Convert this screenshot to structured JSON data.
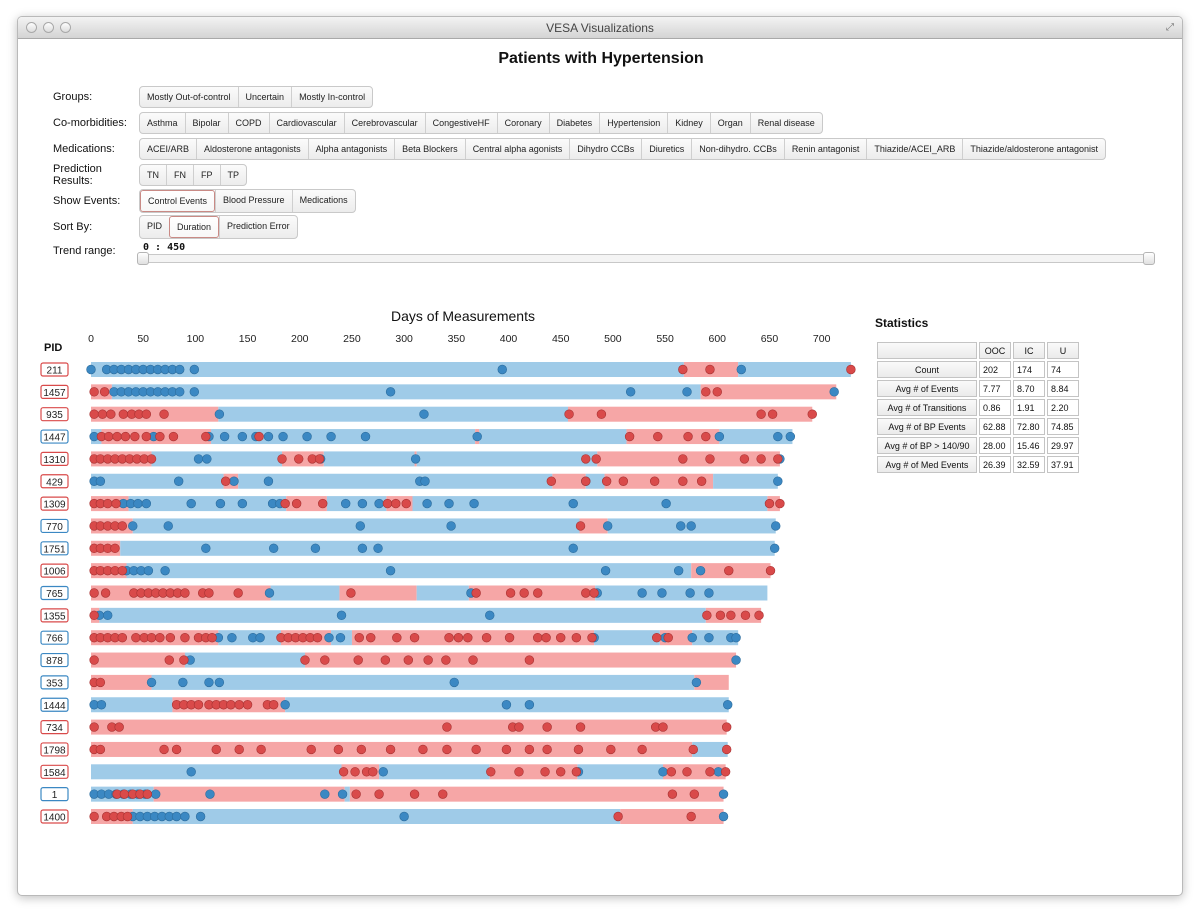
{
  "window": {
    "title": "VESA Visualizations"
  },
  "page": {
    "title": "Patients with Hypertension"
  },
  "controls": [
    {
      "key": "groups",
      "label": "Groups:",
      "buttons": [
        "Mostly Out-of-control",
        "Uncertain",
        "Mostly In-control"
      ],
      "active": -1
    },
    {
      "key": "comorbidities",
      "label": "Co-morbidities:",
      "buttons": [
        "Asthma",
        "Bipolar",
        "COPD",
        "Cardiovascular",
        "Cerebrovascular",
        "CongestiveHF",
        "Coronary",
        "Diabetes",
        "Hypertension",
        "Kidney",
        "Organ",
        "Renal disease"
      ],
      "active": -1
    },
    {
      "key": "medications",
      "label": "Medications:",
      "buttons": [
        "ACEI/ARB",
        "Aldosterone antagonists",
        "Alpha antagonists",
        "Beta Blockers",
        "Central alpha agonists",
        "Dihydro CCBs",
        "Diuretics",
        "Non-dihydro. CCBs",
        "Renin antagonist",
        "Thiazide/ACEI_ARB",
        "Thiazide/aldosterone antagonist"
      ],
      "active": -1
    },
    {
      "key": "prediction",
      "label": "Prediction Results:",
      "buttons": [
        "TN",
        "FN",
        "FP",
        "TP"
      ],
      "active": -1
    },
    {
      "key": "events",
      "label": "Show Events:",
      "buttons": [
        "Control Events",
        "Blood Pressure",
        "Medications"
      ],
      "active": 0
    },
    {
      "key": "sort",
      "label": "Sort By:",
      "buttons": [
        "PID",
        "Duration",
        "Prediction Error"
      ],
      "active": 1
    }
  ],
  "trend": {
    "label": "Trend range:",
    "value": "0 : 450",
    "min": 0,
    "max": 450
  },
  "colors": {
    "in_control": "#9fcbe8",
    "out_of_control": "#f6a6a6",
    "dot_in": "#3b88c3",
    "dot_out": "#d94a4a"
  },
  "chart_data": {
    "type": "timeline",
    "title": "Days of Measurements",
    "row_axis_label": "PID",
    "x_ticks": [
      0,
      50,
      100,
      150,
      200,
      250,
      300,
      350,
      400,
      450,
      500,
      550,
      600,
      650,
      700
    ],
    "xlim": [
      0,
      730
    ],
    "rows": [
      {
        "pid": "211",
        "box": "out",
        "segments": [
          [
            0,
            568,
            "in"
          ],
          [
            568,
            620,
            "out"
          ],
          [
            620,
            728,
            "in"
          ]
        ],
        "dots_in": [
          0,
          15,
          22,
          29,
          36,
          43,
          50,
          57,
          64,
          71,
          78,
          85,
          99,
          394,
          623
        ],
        "dots_out": [
          567,
          593,
          728
        ]
      },
      {
        "pid": "1457",
        "box": "out",
        "segments": [
          [
            0,
            20,
            "out"
          ],
          [
            20,
            584,
            "in"
          ],
          [
            584,
            714,
            "out"
          ]
        ],
        "dots_in": [
          22,
          29,
          36,
          43,
          50,
          57,
          64,
          71,
          78,
          85,
          99,
          287,
          517,
          571,
          712
        ],
        "dots_out": [
          3,
          13,
          589,
          600
        ]
      },
      {
        "pid": "935",
        "box": "out",
        "segments": [
          [
            0,
            122,
            "out"
          ],
          [
            122,
            457,
            "in"
          ],
          [
            457,
            691,
            "out"
          ]
        ],
        "dots_in": [
          123,
          319
        ],
        "dots_out": [
          3,
          11,
          19,
          31,
          39,
          46,
          53,
          70,
          458,
          489,
          642,
          653,
          691
        ]
      },
      {
        "pid": "1447",
        "box": "in",
        "segments": [
          [
            0,
            10,
            "in"
          ],
          [
            10,
            115,
            "out"
          ],
          [
            115,
            368,
            "in"
          ],
          [
            368,
            372,
            "out"
          ],
          [
            372,
            513,
            "in"
          ],
          [
            513,
            602,
            "out"
          ],
          [
            602,
            672,
            "in"
          ]
        ],
        "dots_in": [
          3,
          60,
          113,
          128,
          145,
          158,
          170,
          184,
          207,
          230,
          263,
          370,
          602,
          658,
          670
        ],
        "dots_out": [
          10,
          17,
          25,
          33,
          42,
          53,
          66,
          79,
          110,
          161,
          516,
          543,
          572,
          589
        ]
      },
      {
        "pid": "1310",
        "box": "out",
        "segments": [
          [
            0,
            58,
            "out"
          ],
          [
            58,
            183,
            "in"
          ],
          [
            183,
            223,
            "out"
          ],
          [
            223,
            310,
            "in"
          ],
          [
            310,
            312,
            "out"
          ],
          [
            312,
            485,
            "in"
          ],
          [
            485,
            660,
            "out"
          ]
        ],
        "dots_in": [
          103,
          111,
          220,
          311,
          660
        ],
        "dots_out": [
          3,
          9,
          16,
          23,
          30,
          37,
          44,
          51,
          58,
          183,
          199,
          212,
          219,
          474,
          484,
          567,
          593,
          626,
          642,
          658
        ]
      },
      {
        "pid": "429",
        "box": "out",
        "segments": [
          [
            0,
            127,
            "in"
          ],
          [
            127,
            141,
            "out"
          ],
          [
            141,
            442,
            "in"
          ],
          [
            442,
            474,
            "out"
          ],
          [
            474,
            492,
            "in"
          ],
          [
            492,
            596,
            "out"
          ],
          [
            596,
            658,
            "in"
          ]
        ],
        "dots_in": [
          3,
          9,
          84,
          137,
          170,
          315,
          320,
          474,
          658
        ],
        "dots_out": [
          129,
          441,
          474,
          494,
          510,
          540,
          567,
          585
        ]
      },
      {
        "pid": "1309",
        "box": "out",
        "segments": [
          [
            0,
            36,
            "out"
          ],
          [
            36,
            187,
            "in"
          ],
          [
            187,
            226,
            "out"
          ],
          [
            226,
            283,
            "in"
          ],
          [
            283,
            308,
            "out"
          ],
          [
            308,
            648,
            "in"
          ],
          [
            648,
            660,
            "out"
          ]
        ],
        "dots_in": [
          31,
          38,
          45,
          53,
          96,
          124,
          145,
          174,
          181,
          244,
          260,
          276,
          322,
          343,
          367,
          462,
          551
        ],
        "dots_out": [
          3,
          9,
          16,
          24,
          186,
          197,
          222,
          284,
          292,
          302,
          650,
          660
        ]
      },
      {
        "pid": "770",
        "box": "in",
        "segments": [
          [
            0,
            40,
            "out"
          ],
          [
            40,
            468,
            "in"
          ],
          [
            468,
            495,
            "out"
          ],
          [
            495,
            656,
            "in"
          ]
        ],
        "dots_in": [
          40,
          74,
          258,
          345,
          495,
          565,
          575,
          656
        ],
        "dots_out": [
          3,
          9,
          16,
          23,
          30,
          469
        ]
      },
      {
        "pid": "1751",
        "box": "in",
        "segments": [
          [
            0,
            28,
            "out"
          ],
          [
            28,
            655,
            "in"
          ]
        ],
        "dots_in": [
          110,
          175,
          215,
          260,
          275,
          462,
          655
        ],
        "dots_out": [
          3,
          9,
          16,
          23
        ]
      },
      {
        "pid": "1006",
        "box": "out",
        "segments": [
          [
            0,
            34,
            "out"
          ],
          [
            34,
            575,
            "in"
          ],
          [
            575,
            651,
            "out"
          ]
        ],
        "dots_in": [
          34,
          41,
          48,
          55,
          71,
          287,
          493,
          563,
          584
        ],
        "dots_out": [
          3,
          9,
          16,
          23,
          30,
          611,
          651
        ]
      },
      {
        "pid": "765",
        "box": "in",
        "segments": [
          [
            0,
            172,
            "out"
          ],
          [
            172,
            238,
            "in"
          ],
          [
            238,
            312,
            "out"
          ],
          [
            312,
            362,
            "in"
          ],
          [
            362,
            483,
            "out"
          ],
          [
            483,
            648,
            "in"
          ]
        ],
        "dots_in": [
          171,
          364,
          485,
          528,
          547,
          574,
          592
        ],
        "dots_out": [
          3,
          14,
          41,
          48,
          55,
          62,
          69,
          76,
          83,
          90,
          107,
          113,
          141,
          249,
          369,
          402,
          415,
          428,
          474,
          482
        ]
      },
      {
        "pid": "1355",
        "box": "out",
        "segments": [
          [
            0,
            8,
            "out"
          ],
          [
            8,
            589,
            "in"
          ],
          [
            589,
            642,
            "out"
          ]
        ],
        "dots_in": [
          8,
          16,
          240,
          382
        ],
        "dots_out": [
          3,
          590,
          603,
          613,
          627,
          640
        ]
      },
      {
        "pid": "766",
        "box": "in",
        "segments": [
          [
            0,
            122,
            "out"
          ],
          [
            122,
            182,
            "in"
          ],
          [
            182,
            230,
            "out"
          ],
          [
            230,
            250,
            "in"
          ],
          [
            250,
            482,
            "out"
          ],
          [
            482,
            545,
            "in"
          ],
          [
            545,
            576,
            "out"
          ],
          [
            576,
            620,
            "in"
          ]
        ],
        "dots_in": [
          122,
          135,
          155,
          162,
          228,
          239,
          482,
          550,
          576,
          592,
          613,
          618
        ],
        "dots_out": [
          3,
          9,
          16,
          23,
          30,
          43,
          51,
          58,
          66,
          76,
          90,
          103,
          110,
          116,
          182,
          189,
          196,
          203,
          210,
          217,
          257,
          268,
          293,
          310,
          343,
          352,
          361,
          379,
          401,
          428,
          436,
          450,
          465,
          480,
          542,
          553
        ]
      },
      {
        "pid": "878",
        "box": "in",
        "segments": [
          [
            0,
            90,
            "out"
          ],
          [
            90,
            205,
            "in"
          ],
          [
            205,
            618,
            "out"
          ]
        ],
        "dots_in": [
          95,
          618
        ],
        "dots_out": [
          3,
          75,
          89,
          205,
          224,
          256,
          282,
          304,
          323,
          340,
          366,
          420
        ]
      },
      {
        "pid": "353",
        "box": "in",
        "segments": [
          [
            0,
            58,
            "out"
          ],
          [
            58,
            578,
            "in"
          ],
          [
            578,
            611,
            "out"
          ]
        ],
        "dots_in": [
          58,
          88,
          113,
          123,
          348,
          580
        ],
        "dots_out": [
          3,
          9
        ]
      },
      {
        "pid": "1444",
        "box": "in",
        "segments": [
          [
            0,
            78,
            "in"
          ],
          [
            78,
            186,
            "out"
          ],
          [
            186,
            611,
            "in"
          ]
        ],
        "dots_in": [
          3,
          10,
          186,
          398,
          420,
          610
        ],
        "dots_out": [
          82,
          89,
          96,
          103,
          113,
          120,
          127,
          134,
          142,
          150,
          169,
          175
        ]
      },
      {
        "pid": "734",
        "box": "out",
        "segments": [
          [
            0,
            609,
            "out"
          ]
        ],
        "dots_in": [],
        "dots_out": [
          3,
          20,
          27,
          341,
          404,
          410,
          437,
          469,
          541,
          548,
          609
        ]
      },
      {
        "pid": "1798",
        "box": "out",
        "segments": [
          [
            0,
            576,
            "out"
          ],
          [
            576,
            610,
            "in"
          ]
        ],
        "dots_in": [],
        "dots_out": [
          3,
          9,
          70,
          82,
          120,
          142,
          163,
          211,
          237,
          259,
          287,
          318,
          341,
          369,
          398,
          420,
          437,
          467,
          498,
          528,
          577,
          609
        ]
      },
      {
        "pid": "1584",
        "box": "out",
        "segments": [
          [
            0,
            240,
            "in"
          ],
          [
            240,
            276,
            "out"
          ],
          [
            276,
            382,
            "in"
          ],
          [
            382,
            466,
            "out"
          ],
          [
            466,
            548,
            "in"
          ],
          [
            548,
            608,
            "out"
          ]
        ],
        "dots_in": [
          96,
          280,
          467,
          548,
          601
        ],
        "dots_out": [
          242,
          253,
          264,
          270,
          383,
          410,
          435,
          450,
          465,
          556,
          571,
          593,
          608
        ]
      },
      {
        "pid": "1",
        "box": "in",
        "segments": [
          [
            0,
            60,
            "in"
          ],
          [
            60,
            243,
            "out"
          ],
          [
            243,
            248,
            "in"
          ],
          [
            248,
            606,
            "out"
          ]
        ],
        "dots_in": [
          3,
          10,
          17,
          24,
          31,
          38,
          45,
          52,
          62,
          114,
          224,
          241,
          606
        ],
        "dots_out": [
          25,
          32,
          40,
          47,
          54,
          254,
          276,
          310,
          337,
          557,
          578
        ]
      },
      {
        "pid": "1400",
        "box": "out",
        "segments": [
          [
            0,
            40,
            "out"
          ],
          [
            40,
            507,
            "in"
          ],
          [
            507,
            606,
            "out"
          ]
        ],
        "dots_in": [
          40,
          47,
          54,
          61,
          68,
          75,
          82,
          90,
          105,
          300,
          606
        ],
        "dots_out": [
          3,
          15,
          22,
          29,
          35,
          505,
          575
        ]
      }
    ]
  },
  "statistics": {
    "title": "Statistics",
    "columns": [
      "OOC",
      "IC",
      "U"
    ],
    "rows": [
      {
        "label": "Count",
        "values": [
          "202",
          "174",
          "74"
        ]
      },
      {
        "label": "Avg # of Events",
        "values": [
          "7.77",
          "8.70",
          "8.84"
        ]
      },
      {
        "label": "Avg # of Transitions",
        "values": [
          "0.86",
          "1.91",
          "2.20"
        ]
      },
      {
        "label": "Avg # of BP Events",
        "values": [
          "62.88",
          "72.80",
          "74.85"
        ]
      },
      {
        "label": "Avg # of BP > 140/90",
        "values": [
          "28.00",
          "15.46",
          "29.97"
        ]
      },
      {
        "label": "Avg # of Med Events",
        "values": [
          "26.39",
          "32.59",
          "37.91"
        ]
      }
    ]
  }
}
